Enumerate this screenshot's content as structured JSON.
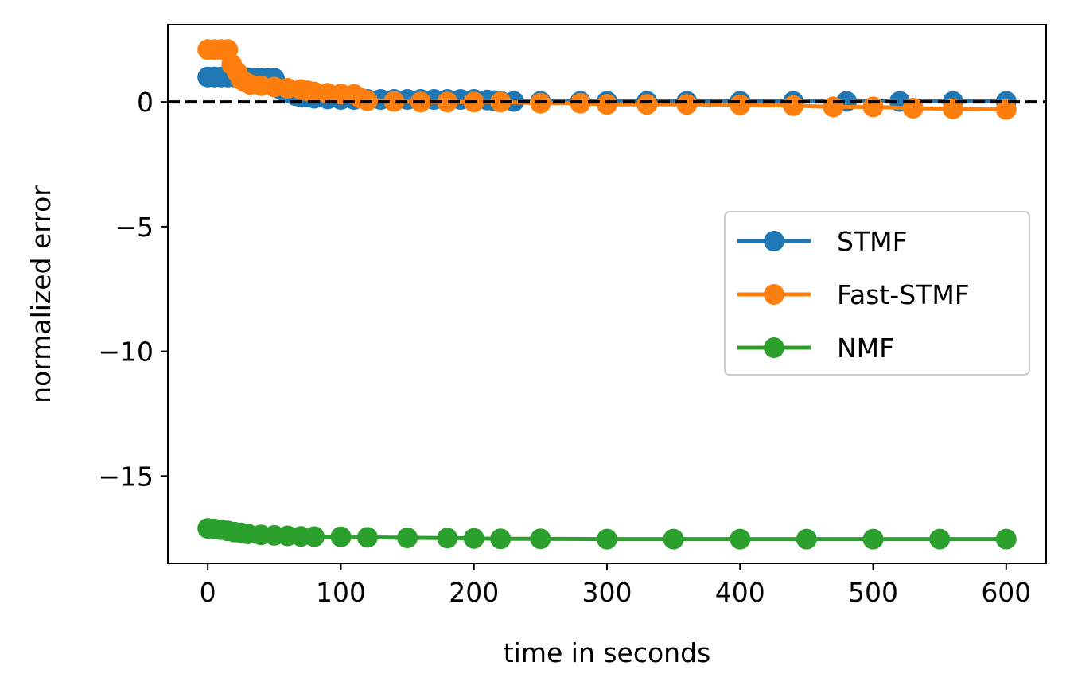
{
  "chart_data": {
    "type": "line",
    "title": "",
    "xlabel": "time in seconds",
    "ylabel": "normalized error",
    "xlim": [
      -30,
      630
    ],
    "ylim": [
      -18.5,
      3.1
    ],
    "xticks": [
      0,
      100,
      200,
      300,
      400,
      500,
      600
    ],
    "yticks": [
      0,
      -5,
      -10,
      -15
    ],
    "xtick_labels": [
      "0",
      "100",
      "200",
      "300",
      "400",
      "500",
      "600"
    ],
    "ytick_labels": [
      "0",
      "−5",
      "−10",
      "−15"
    ],
    "grid": false,
    "legend_position": "center-right",
    "reference_line": {
      "y": 0,
      "style": "dashed",
      "color": "#000000"
    },
    "series": [
      {
        "name": "STMF",
        "color": "#1f77b4",
        "x": [
          0,
          5,
          10,
          15,
          20,
          25,
          30,
          35,
          40,
          45,
          50,
          52,
          55,
          58,
          62,
          66,
          70,
          75,
          80,
          90,
          100,
          110,
          120,
          130,
          140,
          150,
          160,
          170,
          180,
          190,
          200,
          210,
          215,
          220,
          230,
          250,
          280,
          300,
          330,
          360,
          400,
          440,
          480,
          520,
          560,
          600
        ],
        "y": [
          1.0,
          1.0,
          1.0,
          1.0,
          1.0,
          1.0,
          0.97,
          0.95,
          0.95,
          0.95,
          0.95,
          0.7,
          0.5,
          0.4,
          0.35,
          0.25,
          0.2,
          0.2,
          0.15,
          0.12,
          0.1,
          0.1,
          0.1,
          0.1,
          0.1,
          0.1,
          0.1,
          0.1,
          0.1,
          0.1,
          0.1,
          0.08,
          0.05,
          0.03,
          0.02,
          0.02,
          0.02,
          0.02,
          0.02,
          0.02,
          0.02,
          0.02,
          0.02,
          0.02,
          0.02,
          0.02
        ]
      },
      {
        "name": "Fast-STMF",
        "color": "#ff7f0e",
        "x": [
          0,
          5,
          10,
          15,
          18,
          22,
          25,
          28,
          32,
          40,
          50,
          60,
          70,
          75,
          80,
          90,
          100,
          110,
          115,
          120,
          140,
          160,
          180,
          200,
          220,
          250,
          280,
          300,
          330,
          360,
          400,
          440,
          470,
          500,
          530,
          560,
          600
        ],
        "y": [
          2.1,
          2.1,
          2.1,
          2.1,
          1.5,
          1.2,
          0.9,
          0.8,
          0.7,
          0.65,
          0.6,
          0.55,
          0.5,
          0.45,
          0.4,
          0.35,
          0.32,
          0.3,
          0.15,
          0.05,
          0.02,
          0.0,
          0.0,
          0.0,
          0.0,
          -0.05,
          -0.05,
          -0.1,
          -0.1,
          -0.1,
          -0.12,
          -0.15,
          -0.2,
          -0.2,
          -0.25,
          -0.28,
          -0.3
        ]
      },
      {
        "name": "NMF",
        "color": "#2ca02c",
        "x": [
          0,
          5,
          10,
          15,
          20,
          25,
          30,
          40,
          50,
          60,
          70,
          80,
          100,
          120,
          150,
          180,
          200,
          220,
          250,
          300,
          350,
          400,
          450,
          500,
          550,
          600
        ],
        "y": [
          -17.1,
          -17.12,
          -17.15,
          -17.2,
          -17.25,
          -17.28,
          -17.32,
          -17.36,
          -17.38,
          -17.4,
          -17.42,
          -17.43,
          -17.44,
          -17.46,
          -17.48,
          -17.49,
          -17.5,
          -17.52,
          -17.52,
          -17.53,
          -17.53,
          -17.53,
          -17.53,
          -17.53,
          -17.53,
          -17.53
        ]
      }
    ]
  }
}
